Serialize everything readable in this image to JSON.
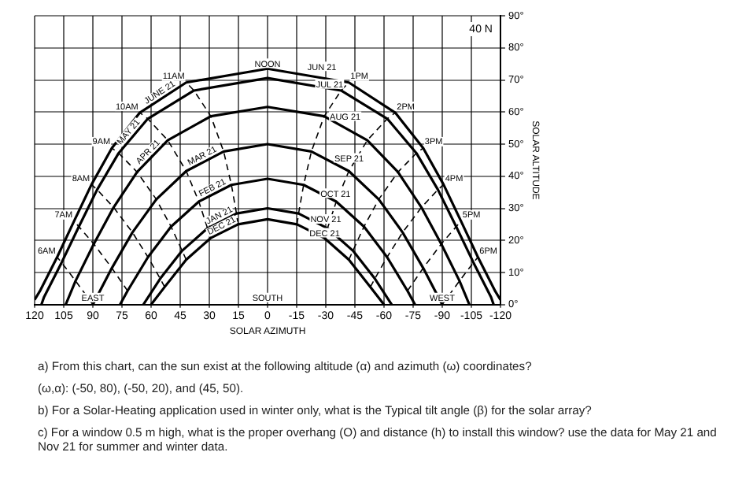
{
  "chart_data": {
    "type": "line",
    "subtitle": "40 N",
    "xlabel": "SOLAR AZIMUTH",
    "ylabel": "SOLAR ALTITUDE",
    "xlim": [
      120,
      -120
    ],
    "xticks": [
      120,
      105,
      90,
      75,
      60,
      45,
      30,
      15,
      0,
      -15,
      -30,
      -45,
      -60,
      -75,
      -90,
      -105,
      -120
    ],
    "ylim": [
      0,
      90
    ],
    "yticks": [
      {
        "value": 0,
        "label": "0°"
      },
      {
        "value": 10,
        "label": "10°"
      },
      {
        "value": 20,
        "label": "20°"
      },
      {
        "value": 30,
        "label": "30°"
      },
      {
        "value": 40,
        "label": "40°"
      },
      {
        "value": 50,
        "label": "50°"
      },
      {
        "value": 60,
        "label": "60°"
      },
      {
        "value": 70,
        "label": "70°"
      },
      {
        "value": 80,
        "label": "80°"
      },
      {
        "value": 90,
        "label": "90°"
      }
    ],
    "grid": true,
    "legend": false,
    "marker": "none",
    "line_style": "solid",
    "series": [
      {
        "name": "JUNE 21",
        "color": "#000000",
        "x": [
          120,
          117.3,
          108.4,
          99.7,
          90.7,
          80.2,
          65.8,
          41.9,
          0,
          -41.9,
          -65.8,
          -80.2,
          -90.7,
          -99.7,
          -108.4,
          -117.3,
          -120
        ],
        "values": [
          1.5,
          4.2,
          14.8,
          26,
          37.4,
          48.8,
          59.8,
          69.2,
          73.5,
          69.2,
          59.8,
          48.8,
          37.4,
          26,
          14.8,
          4.2,
          1.5
        ]
      },
      {
        "name": "MAY 21",
        "color": "#000000",
        "x": [
          116.5,
          115.2,
          106.1,
          97.2,
          87.8,
          76.7,
          61.7,
          37.9,
          0,
          -37.9,
          -61.7,
          -76.7,
          -87.8,
          -97.2,
          -106.1,
          -115.2,
          -116.5
        ],
        "values": [
          0,
          2.3,
          13.1,
          24.3,
          35.8,
          47.2,
          57.9,
          66.7,
          70.6,
          66.7,
          57.9,
          47.2,
          35.8,
          24.3,
          13.1,
          2.3,
          0
        ]
      },
      {
        "name": "APR 21",
        "color": "#000000",
        "x": [
          104,
          98.9,
          89.5,
          79.3,
          67.2,
          51.4,
          29.2,
          0,
          -29.2,
          -51.4,
          -67.2,
          -79.3,
          -89.5,
          -98.9,
          -104
        ],
        "values": [
          0,
          7.4,
          18.9,
          30.3,
          41.3,
          51.2,
          58.7,
          61.6,
          58.7,
          51.2,
          41.3,
          30.3,
          18.9,
          7.4,
          0
        ]
      },
      {
        "name": "MAR 21",
        "color": "#000000",
        "x": [
          90,
          80.2,
          69.6,
          57.3,
          41.9,
          22.6,
          0,
          -22.6,
          -41.9,
          -57.3,
          -69.6,
          -80.2,
          -90
        ],
        "values": [
          0,
          11.4,
          22.5,
          32.8,
          41.6,
          47.7,
          50,
          47.7,
          41.6,
          32.8,
          22.5,
          11.4,
          0
        ]
      },
      {
        "name": "FEB 21",
        "color": "#000000",
        "x": [
          76,
          72.1,
          61.6,
          49.7,
          35.4,
          18.6,
          0,
          -18.6,
          -35.4,
          -49.7,
          -61.6,
          -72.1,
          -76
        ],
        "values": [
          0,
          4.3,
          14.8,
          24.3,
          32.1,
          37.3,
          39.2,
          37.3,
          32.1,
          24.3,
          14.8,
          4.3,
          0
        ]
      },
      {
        "name": "JAN 21",
        "color": "#000000",
        "x": [
          64,
          55.3,
          44,
          30.9,
          16,
          0,
          -16,
          -30.9,
          -44,
          -55.3,
          -64
        ],
        "values": [
          0,
          8.1,
          16.8,
          23.8,
          28.4,
          30,
          28.4,
          23.8,
          16.8,
          8.1,
          0
        ]
      },
      {
        "name": "DEC 21",
        "color": "#000000",
        "x": [
          60,
          53,
          41.9,
          29.4,
          15.2,
          0,
          -15.2,
          -29.4,
          -41.9,
          -53,
          -60
        ],
        "values": [
          0,
          5.5,
          14,
          20.7,
          25,
          26.6,
          25,
          20.7,
          14,
          5.5,
          0
        ]
      },
      {
        "name": "6AM",
        "color": "#000000",
        "line_style": "dashed",
        "x": [
          90,
          98.9,
          106.1,
          108.4
        ],
        "values": [
          0,
          7.4,
          13.1,
          14.8
        ]
      },
      {
        "name": "7AM",
        "color": "#000000",
        "line_style": "dashed",
        "x": [
          72.1,
          80.2,
          89.5,
          97.2,
          99.7
        ],
        "values": [
          4.3,
          11.4,
          18.9,
          24.3,
          26
        ]
      },
      {
        "name": "8AM",
        "color": "#000000",
        "line_style": "dashed",
        "x": [
          53,
          55.3,
          61.6,
          69.6,
          79.3,
          87.8,
          90.7
        ],
        "values": [
          5.5,
          8.1,
          14.8,
          22.5,
          30.3,
          35.8,
          37.4
        ]
      },
      {
        "name": "9AM",
        "color": "#000000",
        "line_style": "dashed",
        "x": [
          41.9,
          44,
          49.7,
          57.3,
          67.2,
          76.7,
          80.2
        ],
        "values": [
          14,
          16.8,
          24.3,
          32.8,
          41.3,
          47.2,
          48.8
        ]
      },
      {
        "name": "10AM",
        "color": "#000000",
        "line_style": "dashed",
        "x": [
          29.4,
          30.9,
          35.4,
          41.9,
          51.4,
          61.7,
          65.8
        ],
        "values": [
          20.7,
          23.8,
          32.1,
          41.6,
          51.2,
          57.9,
          59.8
        ]
      },
      {
        "name": "11AM",
        "color": "#000000",
        "line_style": "dashed",
        "x": [
          15.2,
          16,
          18.6,
          22.6,
          29.2,
          37.9,
          41.9
        ],
        "values": [
          25,
          28.4,
          37.3,
          47.7,
          58.7,
          66.7,
          69.2
        ]
      },
      {
        "name": "1PM",
        "color": "#000000",
        "line_style": "dashed",
        "x": [
          -15.2,
          -16,
          -18.6,
          -22.6,
          -29.2,
          -37.9,
          -41.9
        ],
        "values": [
          25,
          28.4,
          37.3,
          47.7,
          58.7,
          66.7,
          69.2
        ]
      },
      {
        "name": "2PM",
        "color": "#000000",
        "line_style": "dashed",
        "x": [
          -29.4,
          -30.9,
          -35.4,
          -41.9,
          -51.4,
          -61.7,
          -65.8
        ],
        "values": [
          20.7,
          23.8,
          32.1,
          41.6,
          51.2,
          57.9,
          59.8
        ]
      },
      {
        "name": "3PM",
        "color": "#000000",
        "line_style": "dashed",
        "x": [
          -41.9,
          -44,
          -49.7,
          -57.3,
          -67.2,
          -76.7,
          -80.2
        ],
        "values": [
          14,
          16.8,
          24.3,
          32.8,
          41.3,
          47.2,
          48.8
        ]
      },
      {
        "name": "4PM",
        "color": "#000000",
        "line_style": "dashed",
        "x": [
          -53,
          -55.3,
          -61.6,
          -69.6,
          -79.3,
          -87.8,
          -90.7
        ],
        "values": [
          5.5,
          8.1,
          14.8,
          22.5,
          30.3,
          35.8,
          37.4
        ]
      },
      {
        "name": "5PM",
        "color": "#000000",
        "line_style": "dashed",
        "x": [
          -72.1,
          -80.2,
          -89.5,
          -97.2,
          -99.7
        ],
        "values": [
          4.3,
          11.4,
          18.9,
          24.3,
          26
        ]
      },
      {
        "name": "6PM",
        "color": "#000000",
        "line_style": "dashed",
        "x": [
          -90,
          -98.9,
          -106.1,
          -108.4
        ],
        "values": [
          0,
          7.4,
          13.1,
          14.8
        ]
      }
    ],
    "annotations": [
      {
        "text": "NOON",
        "x": 0,
        "y": 73.5
      },
      {
        "text": "JUN 21",
        "x": -28,
        "y": 72.5
      },
      {
        "text": "JUL 21",
        "x": -32,
        "y": 67
      },
      {
        "text": "AUG 21",
        "x": -40,
        "y": 57
      },
      {
        "text": "SEP 21",
        "x": -42,
        "y": 44
      },
      {
        "text": "OCT 21",
        "x": -35,
        "y": 33
      },
      {
        "text": "NOV 21",
        "x": -30,
        "y": 25
      },
      {
        "text": "DEC 21",
        "x": -29.4,
        "y": 20.7
      },
      {
        "text": "EAST",
        "x": 90,
        "y": 0
      },
      "SOUTH",
      {
        "text": "WEST",
        "x": -90,
        "y": 0
      },
      "a) From this chart, can the sun exist at the following altitude (α) and azimuth (ω) coordinates?",
      "(ω,α): (-50, 80), (-50, 20), and (45, 50).",
      "b) For a Solar-Heating application used in winter only, what is the Typical tilt angle (β) for the solar array?",
      "c) For a window 0.5 m high, what is the proper overhang (O) and distance (h) to install this window? use the data for May 21 and Nov 21 for summer and winter data."
    ]
  }
}
